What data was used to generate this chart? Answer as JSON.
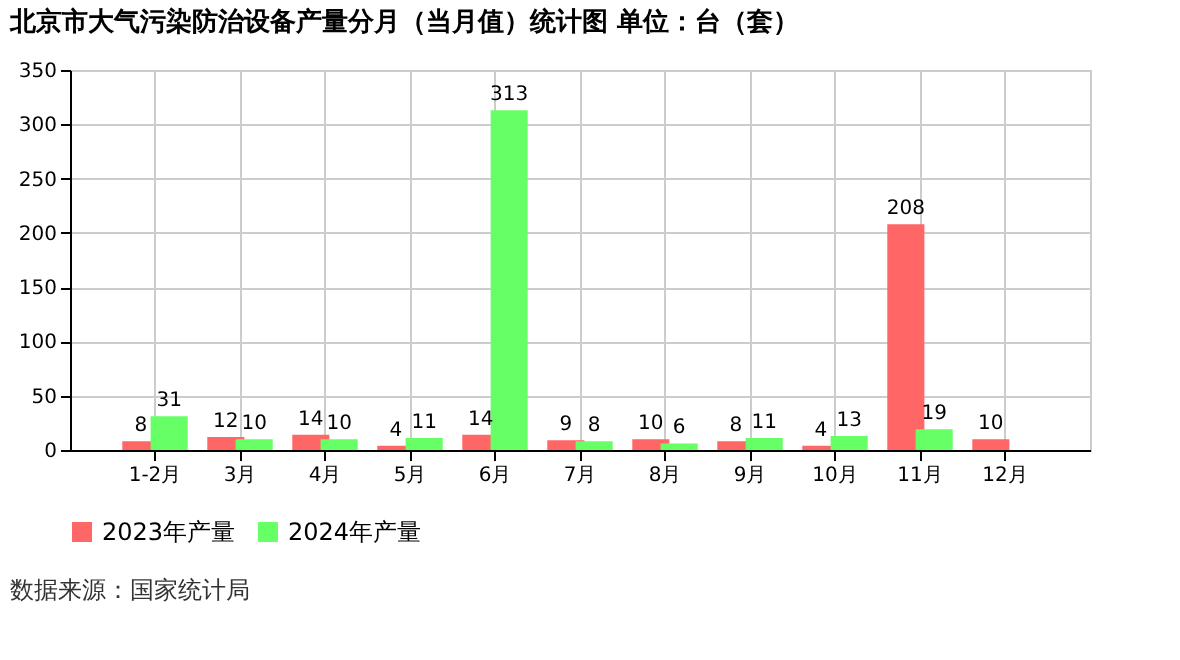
{
  "chart_data": {
    "type": "bar",
    "title": "北京市大气污染防治设备产量分月（当月值）统计图 单位：台（套）",
    "categories": [
      "1-2月",
      "3月",
      "4月",
      "5月",
      "6月",
      "7月",
      "8月",
      "9月",
      "10月",
      "11月",
      "12月"
    ],
    "series": [
      {
        "name": "2023年产量",
        "color": "#ff6666",
        "values": [
          8,
          12,
          14,
          4,
          14,
          9,
          10,
          8,
          4,
          208,
          10
        ]
      },
      {
        "name": "2024年产量",
        "color": "#66ff66",
        "values": [
          31,
          10,
          10,
          11,
          313,
          8,
          6,
          11,
          13,
          19,
          null
        ]
      }
    ],
    "ylim": [
      0,
      350
    ],
    "yticks": [
      0,
      50,
      100,
      150,
      200,
      250,
      300,
      350
    ],
    "grid": true,
    "legend": "bottom",
    "data_labels": true,
    "annotations": [
      "数据来源：国家统计局"
    ]
  }
}
